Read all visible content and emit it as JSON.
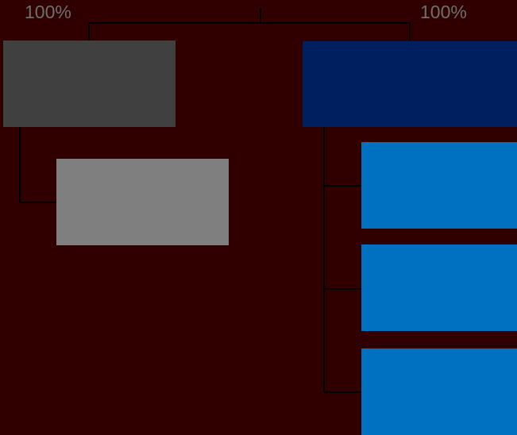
{
  "background": "#300000",
  "connector_color": "#000000",
  "label_color": "#6f6f6f",
  "left_branch": {
    "percent_label": "100%",
    "parent_color": "#404040",
    "children": [
      {
        "color": "#7f7f7f"
      }
    ]
  },
  "right_branch": {
    "percent_label": "100%",
    "parent_color": "#001f5f",
    "children": [
      {
        "color": "#0070c0"
      },
      {
        "color": "#0070c0"
      },
      {
        "color": "#0070c0"
      }
    ]
  }
}
